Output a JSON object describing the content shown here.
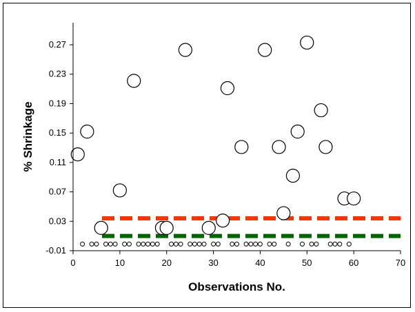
{
  "chart_data": {
    "type": "scatter",
    "xlabel": "Observations No.",
    "ylabel": "% Shrinkage",
    "xlim": [
      0,
      70
    ],
    "ylim": [
      -0.01,
      0.3
    ],
    "x_ticks": [
      "0",
      "10",
      "20",
      "30",
      "40",
      "50",
      "60",
      "70"
    ],
    "y_ticks": [
      "-0.01",
      "0.03",
      "0.07",
      "0.11",
      "0.15",
      "0.19",
      "0.23",
      "0.27"
    ],
    "grid": false,
    "legend": "none",
    "series": [
      {
        "marker": "large-open-circle",
        "color": "#000000",
        "points": [
          [
            1,
            0.121
          ],
          [
            3,
            0.152
          ],
          [
            6,
            0.021
          ],
          [
            10,
            0.072
          ],
          [
            13,
            0.221
          ],
          [
            19,
            0.021
          ],
          [
            20,
            0.021
          ],
          [
            24,
            0.263
          ],
          [
            29,
            0.021
          ],
          [
            32,
            0.031
          ],
          [
            33,
            0.211
          ],
          [
            36,
            0.131
          ],
          [
            41,
            0.263
          ],
          [
            44,
            0.131
          ],
          [
            45,
            0.041
          ],
          [
            47,
            0.092
          ],
          [
            48,
            0.152
          ],
          [
            50,
            0.273
          ],
          [
            53,
            0.181
          ],
          [
            54,
            0.131
          ],
          [
            58,
            0.061
          ],
          [
            60,
            0.061
          ]
        ]
      },
      {
        "marker": "small-open-circle",
        "color": "#000000",
        "x": [
          2,
          4,
          5,
          7,
          8,
          9,
          11,
          12,
          14,
          15,
          16,
          17,
          18,
          21,
          22,
          23,
          25,
          26,
          27,
          28,
          30,
          31,
          34,
          35,
          37,
          38,
          39,
          40,
          42,
          43,
          46,
          49,
          51,
          52,
          55,
          56,
          57,
          59
        ],
        "y": -0.001
      }
    ],
    "reference_lines": [
      {
        "y": 0.034,
        "color": "#ff3300",
        "style": "dashed"
      },
      {
        "y": 0.01,
        "color": "#006600",
        "style": "dashed"
      }
    ]
  }
}
